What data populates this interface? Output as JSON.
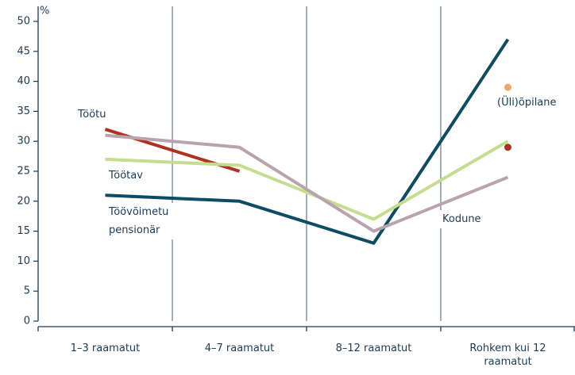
{
  "chart_data": {
    "type": "line",
    "y_unit_label": "%",
    "categories": [
      "1–3 raamatut",
      "4–7 raamatut",
      "8–12 raamatut",
      "Rohkem kui 12 raamatut"
    ],
    "series": [
      {
        "name": "Töötu",
        "color": "#b0311f",
        "values": [
          32,
          25,
          null,
          29
        ]
      },
      {
        "name": "(Üli)õpilane",
        "color": "#f2a65e",
        "values": [
          null,
          null,
          null,
          39
        ]
      },
      {
        "name": "Töövõimetu pensionär",
        "color": "#0e4c63",
        "values": [
          21,
          20,
          13,
          47
        ]
      },
      {
        "name": "Töötav",
        "color": "#c4dd8f",
        "values": [
          27,
          26,
          17,
          30
        ]
      },
      {
        "name": "Kodune",
        "color": "#b9a3ac",
        "values": [
          31,
          29,
          15,
          24
        ]
      }
    ],
    "ylim": [
      0,
      50
    ],
    "yticks": [
      0,
      5,
      10,
      15,
      20,
      25,
      30,
      35,
      40,
      45,
      50
    ]
  }
}
